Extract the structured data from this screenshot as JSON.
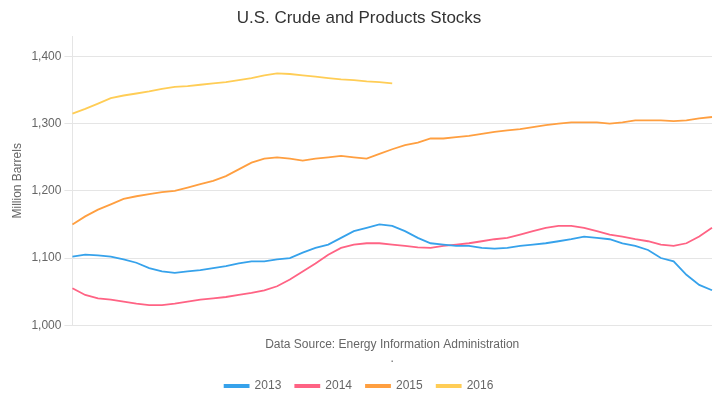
{
  "chart_data": {
    "type": "line",
    "title": "U.S. Crude and Products Stocks",
    "ylabel": "Million Barrels",
    "xlabel": "Data Source: Energy Information Administration",
    "annotations": [
      "."
    ],
    "categories": [
      null,
      null,
      null,
      null,
      null,
      null,
      null,
      null,
      null,
      null,
      null,
      null,
      null,
      null,
      null,
      null,
      null,
      null,
      null,
      null,
      null,
      null,
      null,
      null,
      null,
      null,
      null,
      null,
      null,
      null,
      null,
      null,
      null,
      null,
      null,
      null,
      null,
      null,
      null,
      null,
      null,
      null,
      null,
      null,
      null,
      null,
      null,
      null,
      null,
      null,
      null
    ],
    "series": [
      {
        "name": "2013",
        "values": [
          1102,
          1105,
          1104,
          1102,
          1098,
          1093,
          1085,
          1080,
          1078,
          1080,
          1082,
          1085,
          1088,
          1092,
          1095,
          1095,
          1098,
          1100,
          1108,
          1115,
          1120,
          1130,
          1140,
          1145,
          1150,
          1148,
          1140,
          1130,
          1122,
          1120,
          1118,
          1118,
          1115,
          1114,
          1115,
          1118,
          1120,
          1122,
          1125,
          1128,
          1132,
          1130,
          1128,
          1122,
          1118,
          1112,
          1100,
          1095,
          1075,
          1060,
          1052
        ]
      },
      {
        "name": "2014",
        "values": [
          1055,
          1045,
          1040,
          1038,
          1035,
          1032,
          1030,
          1030,
          1032,
          1035,
          1038,
          1040,
          1042,
          1045,
          1048,
          1052,
          1058,
          1068,
          1080,
          1092,
          1105,
          1115,
          1120,
          1122,
          1122,
          1120,
          1118,
          1116,
          1115,
          1118,
          1120,
          1122,
          1125,
          1128,
          1130,
          1135,
          1140,
          1145,
          1148,
          1148,
          1145,
          1140,
          1135,
          1132,
          1128,
          1125,
          1120,
          1118,
          1122,
          1132,
          1145
        ]
      },
      {
        "name": "2015",
        "values": [
          1150,
          1162,
          1172,
          1180,
          1188,
          1192,
          1195,
          1198,
          1200,
          1205,
          1210,
          1215,
          1222,
          1232,
          1242,
          1248,
          1250,
          1248,
          1245,
          1248,
          1250,
          1252,
          1250,
          1248,
          1255,
          1262,
          1268,
          1272,
          1278,
          1278,
          1280,
          1282,
          1285,
          1288,
          1290,
          1292,
          1295,
          1298,
          1300,
          1302,
          1302,
          1302,
          1300,
          1302,
          1305,
          1305,
          1305,
          1304,
          1305,
          1308,
          1310
        ]
      },
      {
        "name": "2016",
        "values": [
          1315,
          1322,
          1330,
          1338,
          1342,
          1345,
          1348,
          1352,
          1355,
          1356,
          1358,
          1360,
          1362,
          1365,
          1368,
          1372,
          1375,
          1374,
          1372,
          1370,
          1368,
          1366,
          1365,
          1363,
          1362,
          1360,
          null,
          null,
          null,
          null,
          null,
          null,
          null,
          null,
          null,
          null,
          null,
          null,
          null,
          null,
          null,
          null,
          null,
          null,
          null,
          null,
          null,
          null,
          null,
          null,
          null
        ]
      }
    ],
    "ylim": [
      1000,
      1430
    ],
    "yticks": [
      {
        "value": 1000,
        "label": "1,000"
      },
      {
        "value": 1100,
        "label": "1,100"
      },
      {
        "value": 1200,
        "label": "1,200"
      },
      {
        "value": 1300,
        "label": "1,300"
      },
      {
        "value": 1400,
        "label": "1,400"
      }
    ],
    "grid": true,
    "legend": "bottom",
    "tick_labels": "y"
  }
}
